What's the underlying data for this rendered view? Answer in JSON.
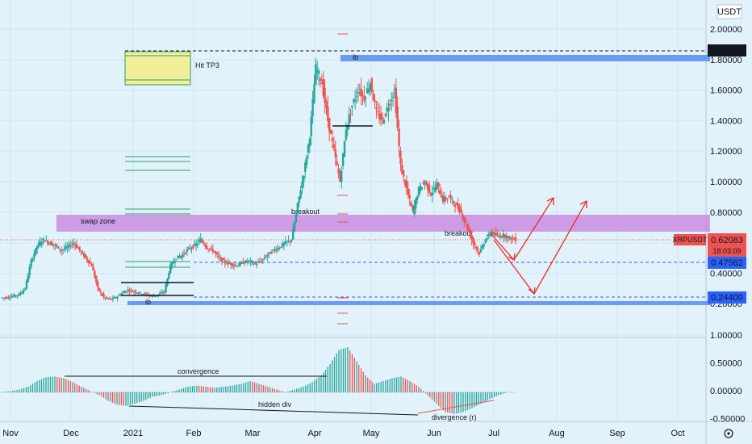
{
  "chart_data": {
    "type": "candlestick",
    "symbol": "XRPUSDT",
    "currency": "USDT",
    "last_price": "0.62083",
    "countdown": "18:03:09",
    "price_axis_labels": [
      "2.00000",
      "1.80000",
      "1.60000",
      "1.40000",
      "1.20000",
      "1.00000",
      "0.80000",
      "0.60000",
      "0.40000",
      "0.20000"
    ],
    "oscillator_axis_labels": [
      "1.00000",
      "0.50000",
      "0.00000",
      "-0.50000"
    ],
    "time_axis_labels": [
      "Nov",
      "Dec",
      "2021",
      "Feb",
      "Mar",
      "Apr",
      "May",
      "Jun",
      "Jul",
      "Aug",
      "Sep",
      "Oct"
    ],
    "price_levels": {
      "top_dashed": "1.85522",
      "mid_dashed": "0.47562",
      "low_dashed": "0.24400"
    },
    "annotations": [
      "Hit TP3",
      "swap zone",
      "breakout",
      "breakout",
      "ib",
      "ib"
    ],
    "oscillator_annotations": [
      "convergence",
      "hidden div",
      "divergence (r)"
    ],
    "colors": {
      "up": "#26a69a",
      "down": "#ef5350",
      "zone": "#c98de0",
      "ib": "#6e9bf2",
      "tp": "#f2ef9a",
      "background": "#e1f2fb"
    },
    "close_series": [
      0.24,
      0.24,
      0.25,
      0.26,
      0.3,
      0.48,
      0.58,
      0.62,
      0.6,
      0.58,
      0.55,
      0.57,
      0.6,
      0.55,
      0.5,
      0.45,
      0.3,
      0.24,
      0.23,
      0.24,
      0.27,
      0.29,
      0.28,
      0.27,
      0.26,
      0.25,
      0.26,
      0.28,
      0.45,
      0.5,
      0.52,
      0.56,
      0.58,
      0.62,
      0.57,
      0.55,
      0.5,
      0.47,
      0.46,
      0.45,
      0.47,
      0.48,
      0.46,
      0.48,
      0.52,
      0.55,
      0.57,
      0.6,
      0.62,
      0.85,
      1.05,
      1.3,
      1.75,
      1.65,
      1.4,
      1.2,
      1.0,
      1.35,
      1.5,
      1.6,
      1.55,
      1.65,
      1.45,
      1.4,
      1.5,
      1.6,
      1.1,
      0.95,
      0.8,
      0.95,
      1.0,
      0.92,
      0.98,
      0.88,
      0.9,
      0.85,
      0.8,
      0.7,
      0.6,
      0.53,
      0.62,
      0.67,
      0.64,
      0.65,
      0.63,
      0.62
    ],
    "oscillator_series": [
      0,
      0.02,
      0.05,
      0.1,
      0.2,
      0.27,
      0.28,
      0.25,
      0.18,
      0.1,
      0.02,
      -0.05,
      -0.15,
      -0.22,
      -0.24,
      -0.2,
      -0.15,
      -0.08,
      -0.05,
      0,
      0.05,
      0.1,
      0.12,
      0.1,
      0.08,
      0.1,
      0.12,
      0.15,
      0.2,
      0.15,
      0.1,
      0.05,
      0,
      0.05,
      0.1,
      0.18,
      0.3,
      0.5,
      0.75,
      0.8,
      0.55,
      0.3,
      0.15,
      0.2,
      0.25,
      0.28,
      0.2,
      0.1,
      -0.05,
      -0.2,
      -0.35,
      -0.38,
      -0.35,
      -0.28,
      -0.2,
      -0.12,
      -0.05,
      0,
      0
    ]
  }
}
